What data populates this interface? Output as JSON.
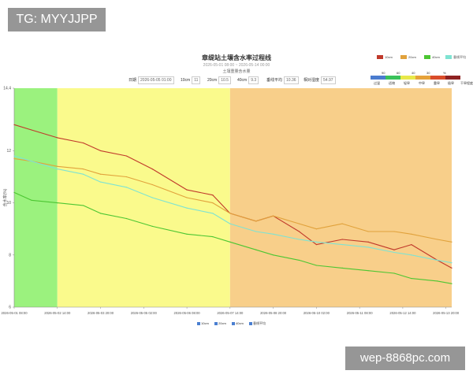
{
  "watermark_top": "TG: MYYJJPP",
  "watermark_bottom": "wep-8868pc.com",
  "chart_data": {
    "type": "line",
    "title": "章缇站土壤含水率过程线",
    "subtitle": "2026-05-01 08:00 ~ 2026-05-14 00:00",
    "subtitle2": "土壤重量含水量",
    "ylabel": "含水率(%)",
    "ylim": [
      6,
      14.4
    ],
    "yticks": [
      "14.4",
      "12",
      "10",
      "8",
      "6"
    ],
    "xlim": [
      "2026-05-01 08:00",
      "2026-05-14 00:00"
    ],
    "xticks": [
      "2026-05-01 08:00",
      "2026-05-02 14:00",
      "2026-05-03 20:00",
      "2026-05-05 02:00",
      "2026-05-06 08:00",
      "2026-05-07 14:00",
      "2026-05-08 20:00",
      "2026-05-10 02:00",
      "2026-05-11 08:00",
      "2026-05-12 14:00",
      "2026-05-13 20:00"
    ],
    "grid": false,
    "params": [
      {
        "label": "日期",
        "value": "2026-05-05 01:00"
      },
      {
        "label": "10cm",
        "value": "11"
      },
      {
        "label": "20cm",
        "value": "10.5"
      },
      {
        "label": "40cm",
        "value": "9.3"
      },
      {
        "label": "垂线平均",
        "value": "10.36"
      },
      {
        "label": "相对湿度",
        "value": "54.97"
      }
    ],
    "bands": [
      {
        "from": "2026-05-01 08:00",
        "to": "2026-05-02 14:00",
        "color": "#9bf27e"
      },
      {
        "from": "2026-05-02 14:00",
        "to": "2026-05-07 14:00",
        "color": "#fafa8c"
      },
      {
        "from": "2026-05-07 14:00",
        "to": "2026-05-14 00:00",
        "color": "#f8cf8a"
      }
    ],
    "dry_scale": {
      "ticks": [
        "90",
        "60",
        "40",
        "30",
        "%"
      ],
      "labels": [
        "过湿",
        "适墒",
        "轻旱",
        "中旱",
        "重旱",
        "极旱",
        "干旱程度"
      ],
      "colors": [
        "#4a7ccf",
        "#39c25a",
        "#e8e84a",
        "#e6a23a",
        "#d94c2a",
        "#8e2222"
      ]
    },
    "series": [
      {
        "name": "10cm",
        "color": "#c0392b",
        "x": [
          "2026-05-01 08:00",
          "2026-05-01 20:00",
          "2026-05-02 14:00",
          "2026-05-03 08:00",
          "2026-05-03 20:00",
          "2026-05-04 14:00",
          "2026-05-05 08:00",
          "2026-05-06 08:00",
          "2026-05-07 02:00",
          "2026-05-07 14:00",
          "2026-05-08 08:00",
          "2026-05-08 20:00",
          "2026-05-09 14:00",
          "2026-05-10 02:00",
          "2026-05-10 20:00",
          "2026-05-11 14:00",
          "2026-05-12 08:00",
          "2026-05-12 20:00",
          "2026-05-13 14:00",
          "2026-05-14 00:00"
        ],
        "values": [
          13.0,
          12.8,
          12.5,
          12.3,
          12.0,
          11.8,
          11.3,
          10.5,
          10.3,
          9.6,
          9.3,
          9.5,
          8.9,
          8.4,
          8.6,
          8.5,
          8.2,
          8.4,
          7.8,
          7.5
        ]
      },
      {
        "name": "20cm",
        "color": "#e1a23c",
        "x": [
          "2026-05-01 08:00",
          "2026-05-01 20:00",
          "2026-05-02 14:00",
          "2026-05-03 08:00",
          "2026-05-03 20:00",
          "2026-05-04 14:00",
          "2026-05-05 08:00",
          "2026-05-06 08:00",
          "2026-05-07 02:00",
          "2026-05-07 14:00",
          "2026-05-08 08:00",
          "2026-05-08 20:00",
          "2026-05-09 14:00",
          "2026-05-10 02:00",
          "2026-05-10 20:00",
          "2026-05-11 14:00",
          "2026-05-12 08:00",
          "2026-05-12 20:00",
          "2026-05-13 14:00",
          "2026-05-14 00:00"
        ],
        "values": [
          11.7,
          11.6,
          11.4,
          11.3,
          11.1,
          11.0,
          10.7,
          10.2,
          10.0,
          9.6,
          9.3,
          9.5,
          9.2,
          9.0,
          9.2,
          8.9,
          8.9,
          8.8,
          8.6,
          8.5
        ]
      },
      {
        "name": "40cm",
        "color": "#4cc632",
        "x": [
          "2026-05-01 08:00",
          "2026-05-01 20:00",
          "2026-05-02 14:00",
          "2026-05-03 08:00",
          "2026-05-03 20:00",
          "2026-05-04 14:00",
          "2026-05-05 08:00",
          "2026-05-06 08:00",
          "2026-05-07 02:00",
          "2026-05-07 14:00",
          "2026-05-08 08:00",
          "2026-05-08 20:00",
          "2026-05-09 14:00",
          "2026-05-10 02:00",
          "2026-05-10 20:00",
          "2026-05-11 14:00",
          "2026-05-12 08:00",
          "2026-05-12 20:00",
          "2026-05-13 14:00",
          "2026-05-14 00:00"
        ],
        "values": [
          10.4,
          10.1,
          10.0,
          9.9,
          9.6,
          9.4,
          9.1,
          8.8,
          8.7,
          8.5,
          8.2,
          8.0,
          7.8,
          7.6,
          7.5,
          7.4,
          7.3,
          7.1,
          7.0,
          6.9
        ]
      },
      {
        "name": "垂线平均",
        "color": "#7fe3d2",
        "x": [
          "2026-05-01 08:00",
          "2026-05-01 20:00",
          "2026-05-02 14:00",
          "2026-05-03 08:00",
          "2026-05-03 20:00",
          "2026-05-04 14:00",
          "2026-05-05 08:00",
          "2026-05-06 08:00",
          "2026-05-07 02:00",
          "2026-05-07 14:00",
          "2026-05-08 08:00",
          "2026-05-08 20:00",
          "2026-05-09 14:00",
          "2026-05-10 02:00",
          "2026-05-10 20:00",
          "2026-05-11 14:00",
          "2026-05-12 08:00",
          "2026-05-12 20:00",
          "2026-05-13 14:00",
          "2026-05-14 00:00"
        ],
        "values": [
          11.8,
          11.6,
          11.3,
          11.1,
          10.8,
          10.6,
          10.2,
          9.8,
          9.6,
          9.2,
          8.9,
          8.8,
          8.6,
          8.5,
          8.4,
          8.3,
          8.1,
          8.0,
          7.8,
          7.7
        ]
      }
    ]
  }
}
